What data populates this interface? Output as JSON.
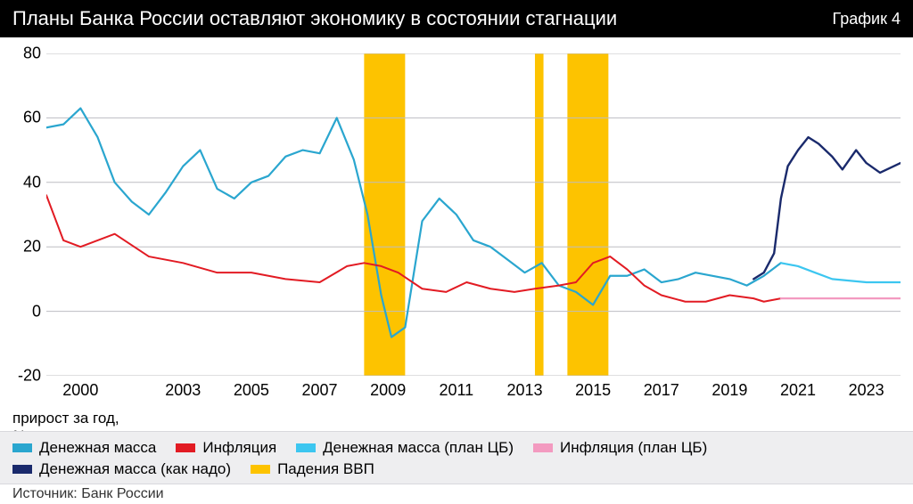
{
  "header": {
    "title": "Планы Банка России оставляют экономику в состоянии стагнации",
    "chart_no": "График 4"
  },
  "ylabel_lines": [
    "прирост за год,",
    "%"
  ],
  "source": "Источник: Банк России",
  "chart": {
    "type": "line",
    "xlim": [
      1999.0,
      2024.0
    ],
    "ylim": [
      -20,
      80
    ],
    "ytick_step": 20,
    "xticks": [
      2000,
      2003,
      2005,
      2007,
      2009,
      2011,
      2013,
      2015,
      2017,
      2019,
      2021,
      2023
    ],
    "background_color": "#ffffff",
    "grid_color": "#bdbdc2",
    "axis_fontsize": 18,
    "label_fontsize": 17,
    "legend_fontsize": 17,
    "bands": {
      "color": "#fdc300",
      "ranges": [
        [
          2008.3,
          2009.5
        ],
        [
          2013.3,
          2013.55
        ],
        [
          2014.25,
          2015.45
        ]
      ]
    },
    "series": [
      {
        "key": "money_supply",
        "label": "Денежная масса",
        "color": "#2aa6cf",
        "width": 2.2,
        "x": [
          1999.0,
          1999.5,
          2000.0,
          2000.5,
          2001.0,
          2001.5,
          2002.0,
          2002.5,
          2003.0,
          2003.5,
          2004.0,
          2004.5,
          2005.0,
          2005.5,
          2006.0,
          2006.5,
          2007.0,
          2007.5,
          2008.0,
          2008.4,
          2008.8,
          2009.1,
          2009.5,
          2010.0,
          2010.5,
          2011.0,
          2011.5,
          2012.0,
          2012.5,
          2013.0,
          2013.5,
          2014.0,
          2014.5,
          2015.0,
          2015.5,
          2016.0,
          2016.5,
          2017.0,
          2017.5,
          2018.0,
          2018.5,
          2019.0,
          2019.5,
          2020.0,
          2020.5
        ],
        "y": [
          57,
          58,
          63,
          54,
          40,
          34,
          30,
          37,
          45,
          50,
          38,
          35,
          40,
          42,
          48,
          50,
          49,
          60,
          47,
          30,
          5,
          -8,
          -5,
          28,
          35,
          30,
          22,
          20,
          16,
          12,
          15,
          8,
          6,
          2,
          11,
          11,
          13,
          9,
          10,
          12,
          11,
          10,
          8,
          11,
          15
        ]
      },
      {
        "key": "inflation",
        "label": "Инфляция",
        "color": "#e21b23",
        "width": 2.0,
        "x": [
          1999.0,
          1999.5,
          2000.0,
          2001.0,
          2002.0,
          2003.0,
          2004.0,
          2005.0,
          2006.0,
          2007.0,
          2007.8,
          2008.3,
          2008.8,
          2009.3,
          2010.0,
          2010.7,
          2011.3,
          2012.0,
          2012.7,
          2013.3,
          2014.0,
          2014.5,
          2015.0,
          2015.5,
          2016.0,
          2016.5,
          2017.0,
          2017.7,
          2018.3,
          2019.0,
          2019.7,
          2020.0,
          2020.5
        ],
        "y": [
          36,
          22,
          20,
          24,
          17,
          15,
          12,
          12,
          10,
          9,
          14,
          15,
          14,
          12,
          7,
          6,
          9,
          7,
          6,
          7,
          8,
          9,
          15,
          17,
          13,
          8,
          5,
          3,
          3,
          5,
          4,
          3,
          4
        ]
      },
      {
        "key": "money_plan",
        "label": "Денежная масса (план ЦБ)",
        "color": "#3cc6f0",
        "width": 2.2,
        "x": [
          2020.5,
          2021.0,
          2021.5,
          2022.0,
          2023.0,
          2024.0
        ],
        "y": [
          15,
          14,
          12,
          10,
          9,
          9
        ]
      },
      {
        "key": "infl_plan",
        "label": "Инфляция (план ЦБ)",
        "color": "#f39ac0",
        "width": 2.2,
        "x": [
          2020.5,
          2021.0,
          2022.0,
          2023.0,
          2024.0
        ],
        "y": [
          4,
          4,
          4,
          4,
          4
        ]
      },
      {
        "key": "money_need",
        "label": "Денежная масса (как надо)",
        "color": "#1a2a6c",
        "width": 2.4,
        "x": [
          2019.7,
          2020.0,
          2020.3,
          2020.5,
          2020.7,
          2021.0,
          2021.3,
          2021.6,
          2022.0,
          2022.3,
          2022.7,
          2023.0,
          2023.4,
          2024.0
        ],
        "y": [
          10,
          12,
          18,
          35,
          45,
          50,
          54,
          52,
          48,
          44,
          50,
          46,
          43,
          46
        ]
      }
    ],
    "legend_extra": {
      "key": "gdp_fall",
      "label": "Падения ВВП",
      "color": "#fdc300"
    }
  }
}
